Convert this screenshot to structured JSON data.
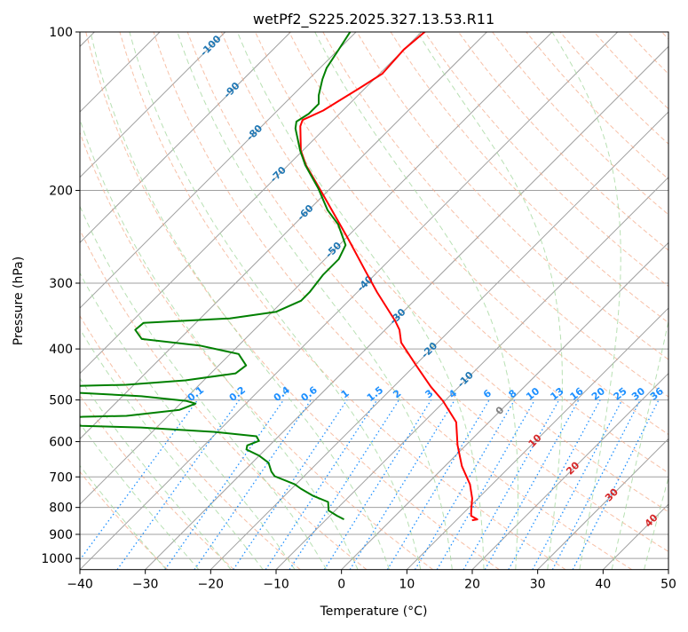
{
  "chart_data": {
    "type": "line",
    "title": "wetPf2_S225.2025.327.13.53.R11",
    "xlabel": "Temperature (°C)",
    "ylabel": "Pressure (hPa)",
    "xlim": [
      -40,
      50
    ],
    "ylim": [
      1050,
      100
    ],
    "yscale": "log",
    "skew_degrees": 45,
    "grid": true,
    "xticks": [
      "−40",
      "−30",
      "−20",
      "−10",
      "0",
      "10",
      "20",
      "30",
      "40",
      "50"
    ],
    "xtick_values": [
      -40,
      -30,
      -20,
      -10,
      0,
      10,
      20,
      30,
      40,
      50
    ],
    "yticks": [
      "100",
      "200",
      "300",
      "400",
      "500",
      "600",
      "700",
      "800",
      "900",
      "1000"
    ],
    "ytick_values": [
      100,
      200,
      300,
      400,
      500,
      600,
      700,
      800,
      900,
      1000
    ],
    "series": [
      {
        "name": "Temperature",
        "color": "#ff0000",
        "pressure": [
          100,
          108,
          120,
          128,
          141,
          147,
          151,
          168,
          179,
          201,
          247,
          285,
          312,
          354,
          368,
          389,
          430,
          472,
          502,
          551,
          609,
          668,
          723,
          769,
          811,
          830,
          843,
          846
        ],
        "temperature": [
          -69.5,
          -70.0,
          -69.6,
          -70.9,
          -73.0,
          -74.7,
          -74.1,
          -70.3,
          -67.3,
          -60.9,
          -49.6,
          -41.9,
          -37.0,
          -29.8,
          -27.8,
          -25.6,
          -19.8,
          -14.3,
          -10.3,
          -5.0,
          -1.3,
          2.6,
          6.6,
          9.1,
          10.8,
          11.6,
          13.1,
          12.4
        ]
      },
      {
        "name": "Dewpoint",
        "color": "#008000",
        "pressure": [
          100,
          108.5,
          117,
          123,
          132,
          137,
          143,
          148,
          152.5,
          168,
          179,
          198,
          218,
          232,
          254,
          270,
          289,
          312,
          324,
          340,
          350,
          357,
          368,
          383,
          394,
          409,
          430,
          445,
          459,
          468,
          470,
          477,
          485,
          492,
          502,
          508,
          522,
          536,
          538,
          549,
          560,
          564,
          575,
          586,
          598,
          610,
          621,
          638,
          658,
          684,
          698,
          723,
          737,
          760,
          781,
          811,
          830,
          843
        ],
        "temperature": [
          -80.9,
          -79.9,
          -79.0,
          -77.9,
          -76.0,
          -74.7,
          -74.7,
          -75.4,
          -74.5,
          -70.4,
          -67.4,
          -61.9,
          -57.1,
          -53.3,
          -49.0,
          -47.9,
          -47.9,
          -47.3,
          -47.3,
          -49.4,
          -55.5,
          -68.0,
          -68.2,
          -65.8,
          -56.0,
          -48.7,
          -45.8,
          -46.2,
          -52.8,
          -61.2,
          -67.8,
          -78,
          -66.7,
          -57.1,
          -49.6,
          -47.7,
          -49.2,
          -56.4,
          -62.9,
          -74,
          -61.7,
          -52.4,
          -40.4,
          -33.4,
          -32.3,
          -33.4,
          -32.9,
          -30.0,
          -27.5,
          -25.7,
          -24.5,
          -20.2,
          -18.6,
          -15.7,
          -12.4,
          -11.0,
          -8.9,
          -7.3
        ]
      }
    ],
    "isotherm_labels": [
      "-100",
      "-90",
      "-80",
      "-70",
      "-60",
      "-50",
      "-40",
      "-30",
      "-20",
      "-10",
      "0",
      "10",
      "20",
      "30",
      "40"
    ],
    "isotherm_label_values": [
      -100,
      -90,
      -80,
      -70,
      -60,
      -50,
      -40,
      -30,
      -20,
      -10,
      0,
      10,
      20,
      30,
      40
    ],
    "mixing_ratio_labels": [
      "0.1",
      "0.2",
      "0.4",
      "0.6",
      "1",
      "1.5",
      "2",
      "3",
      "4",
      "6",
      "8",
      "10",
      "13",
      "16",
      "20",
      "25",
      "30",
      "36"
    ],
    "mixing_ratio_values": [
      0.1,
      0.2,
      0.4,
      0.6,
      1,
      1.5,
      2,
      3,
      4,
      6,
      8,
      10,
      13,
      16,
      20,
      25,
      30,
      36
    ],
    "colors": {
      "isotherm": "#a0a0a0",
      "dry_adiabat": "#f4a582",
      "moist_adiabat": "#a6d8a0",
      "mixing_ratio": "#1e90ff",
      "label_negative": "#1f77b4",
      "label_zero": "#808080",
      "label_positive": "#d62728"
    }
  }
}
